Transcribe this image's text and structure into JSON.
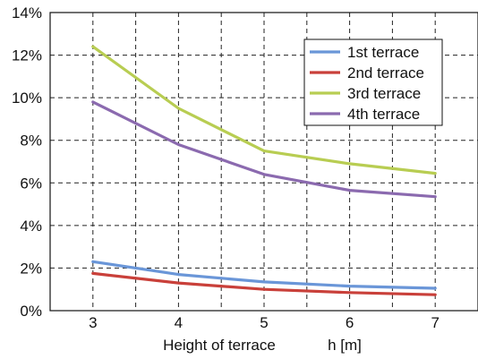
{
  "chart_data": {
    "type": "line",
    "title": "",
    "xlabel": "Height of terrace",
    "xunit": "h [m]",
    "ylabel": "",
    "x": [
      3,
      4,
      5,
      6,
      7
    ],
    "xlim": [
      2.5,
      7.5
    ],
    "xticks": [
      "3",
      "4",
      "5",
      "6",
      "7"
    ],
    "ylim": [
      0,
      14
    ],
    "yticks": [
      "0%",
      "2%",
      "4%",
      "6%",
      "8%",
      "10%",
      "12%",
      "14%"
    ],
    "grid": true,
    "legend_position": "top-right",
    "series": [
      {
        "name": "1st terrace",
        "color": "#6a96d8",
        "values": [
          2.3,
          1.7,
          1.35,
          1.15,
          1.05
        ]
      },
      {
        "name": "2nd terrace",
        "color": "#c9403a",
        "values": [
          1.75,
          1.3,
          1.0,
          0.85,
          0.75
        ]
      },
      {
        "name": "3rd terrace",
        "color": "#b8cd52",
        "values": [
          12.4,
          9.5,
          7.5,
          6.9,
          6.45
        ]
      },
      {
        "name": "4th terrace",
        "color": "#8b6aaf",
        "values": [
          9.8,
          7.8,
          6.4,
          5.65,
          5.35
        ]
      }
    ]
  }
}
